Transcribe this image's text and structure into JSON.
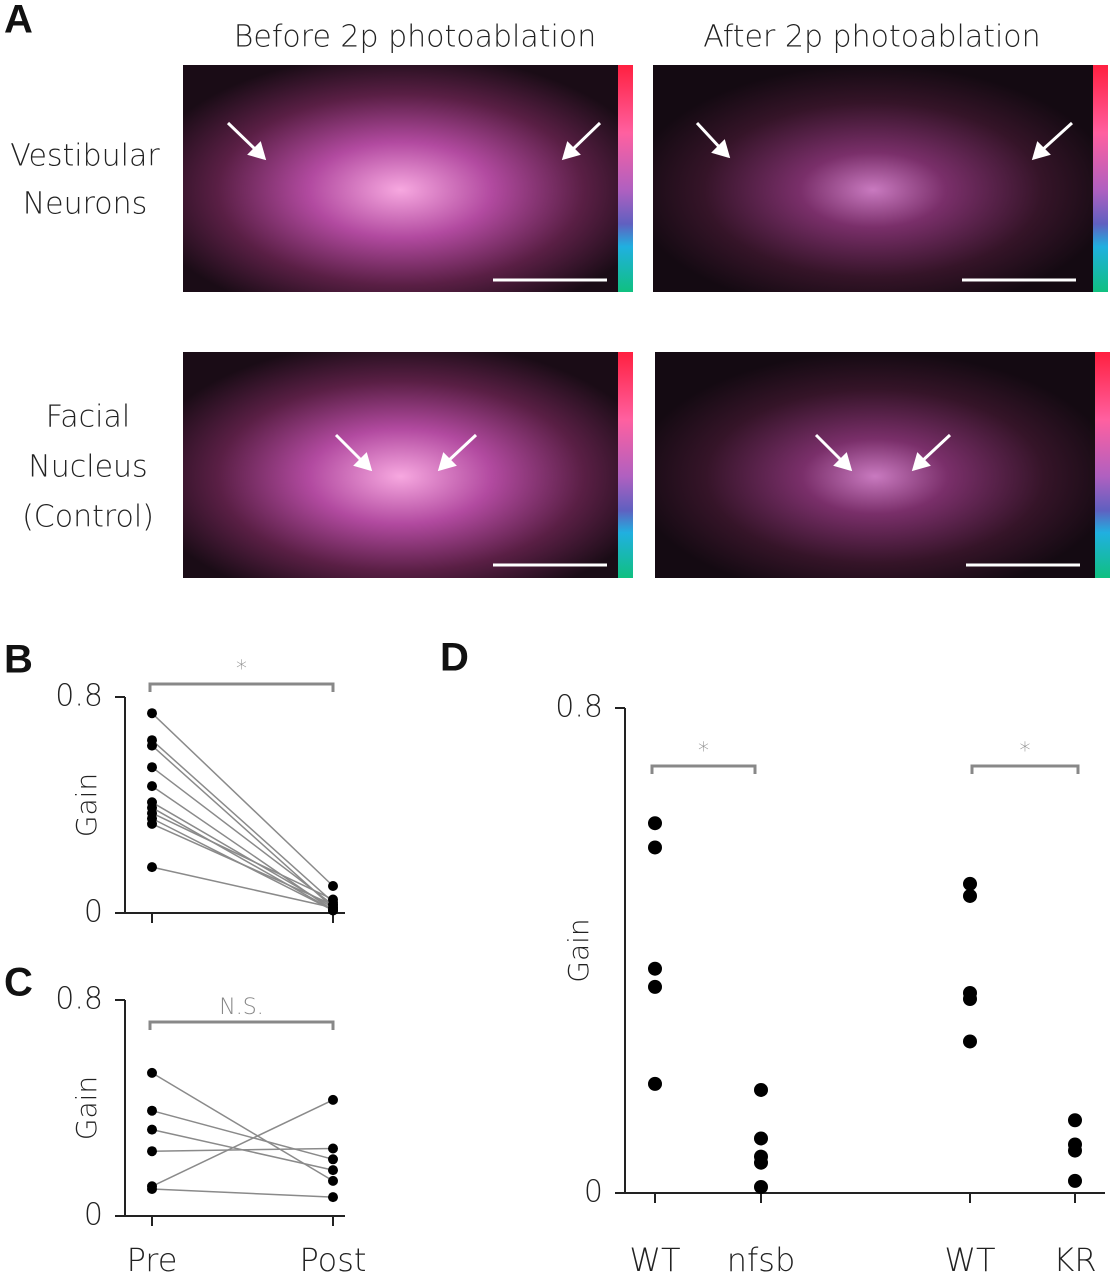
{
  "panel_a": {
    "label": "A",
    "columns": [
      "Before 2p photoablation",
      "After 2p photoablation"
    ],
    "rows": [
      [
        "Vestibular",
        "Neurons"
      ],
      [
        "Facial",
        "Nucleus",
        "(Control)"
      ]
    ]
  },
  "chart_data": [
    {
      "type": "line",
      "panel": "B",
      "y_label": "Gain",
      "categories": [
        null,
        null
      ],
      "ylim": [
        0,
        0.8
      ],
      "yticks": [
        0,
        0.8
      ],
      "annotations": [
        "*"
      ],
      "color": "#000000",
      "line_color": "#8a8a8a",
      "series": [
        {
          "values": [
            0.74,
            0.1
          ]
        },
        {
          "values": [
            0.64,
            0.04
          ]
        },
        {
          "values": [
            0.62,
            0.02
          ]
        },
        {
          "values": [
            0.54,
            0.03
          ]
        },
        {
          "values": [
            0.47,
            0.01
          ]
        },
        {
          "values": [
            0.41,
            0.02
          ]
        },
        {
          "values": [
            0.39,
            0.01
          ]
        },
        {
          "values": [
            0.37,
            0.05
          ]
        },
        {
          "values": [
            0.35,
            0.01
          ]
        },
        {
          "values": [
            0.33,
            0.03
          ]
        },
        {
          "values": [
            0.17,
            0.02
          ]
        }
      ]
    },
    {
      "type": "line",
      "panel": "C",
      "y_label": "Gain",
      "categories": [
        "Pre",
        "Post"
      ],
      "ylim": [
        0,
        0.8
      ],
      "yticks": [
        0,
        0.8
      ],
      "annotations": [
        "N.S."
      ],
      "color": "#000000",
      "line_color": "#8a8a8a",
      "series": [
        {
          "values": [
            0.53,
            0.13
          ]
        },
        {
          "values": [
            0.39,
            0.21
          ]
        },
        {
          "values": [
            0.32,
            0.17
          ]
        },
        {
          "values": [
            0.24,
            0.25
          ]
        },
        {
          "values": [
            0.11,
            0.43
          ]
        },
        {
          "values": [
            0.1,
            0.07
          ]
        }
      ]
    },
    {
      "type": "dot",
      "panel": "D",
      "y_label": "Gain",
      "categories": [
        "WT",
        "nfsb",
        "WT",
        "KR"
      ],
      "ylim": [
        0,
        0.8
      ],
      "yticks": [
        0,
        0.8
      ],
      "annotations": [
        "*",
        "*"
      ],
      "color": "#000000",
      "values": [
        [
          0.61,
          0.57,
          0.37,
          0.34,
          0.18
        ],
        [
          0.17,
          0.09,
          0.06,
          0.05,
          0.01
        ],
        [
          0.51,
          0.49,
          0.33,
          0.32,
          0.25
        ],
        [
          0.12,
          0.08,
          0.07,
          0.02
        ]
      ]
    }
  ]
}
